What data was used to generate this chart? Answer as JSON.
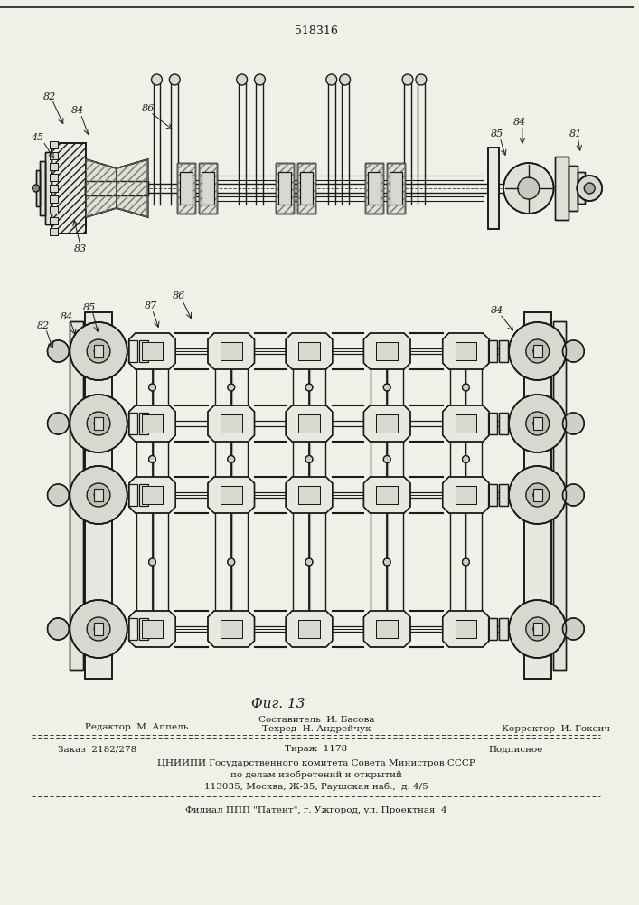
{
  "patent_number": "518316",
  "fig_label": "Фиг. 13",
  "bg_color": "#f0efe8",
  "line_color": "#1a1a1a",
  "hatch_color": "#555555",
  "footer": {
    "line1_left": "Редактор  М. Аппель",
    "line1_center": "Составитель  И. Басова",
    "line2_center": "Техред  Н. Андрейчук",
    "line2_right": "Корректор  И. Гоксич",
    "line3_left": "Заказ  2182/278",
    "line3_center": "Тираж  1178",
    "line3_right": "Подписное",
    "line4": "ЦНИИПИ Государственного комитета Совета Министров СССР",
    "line5": "по делам изобретений и открытий",
    "line6": "113035, Москва, Ж-35, Раушская наб.,  д. 4/5",
    "line7": "Филиал ППП \"Патент\", г. Ужгород, ул. Проектная  4"
  }
}
